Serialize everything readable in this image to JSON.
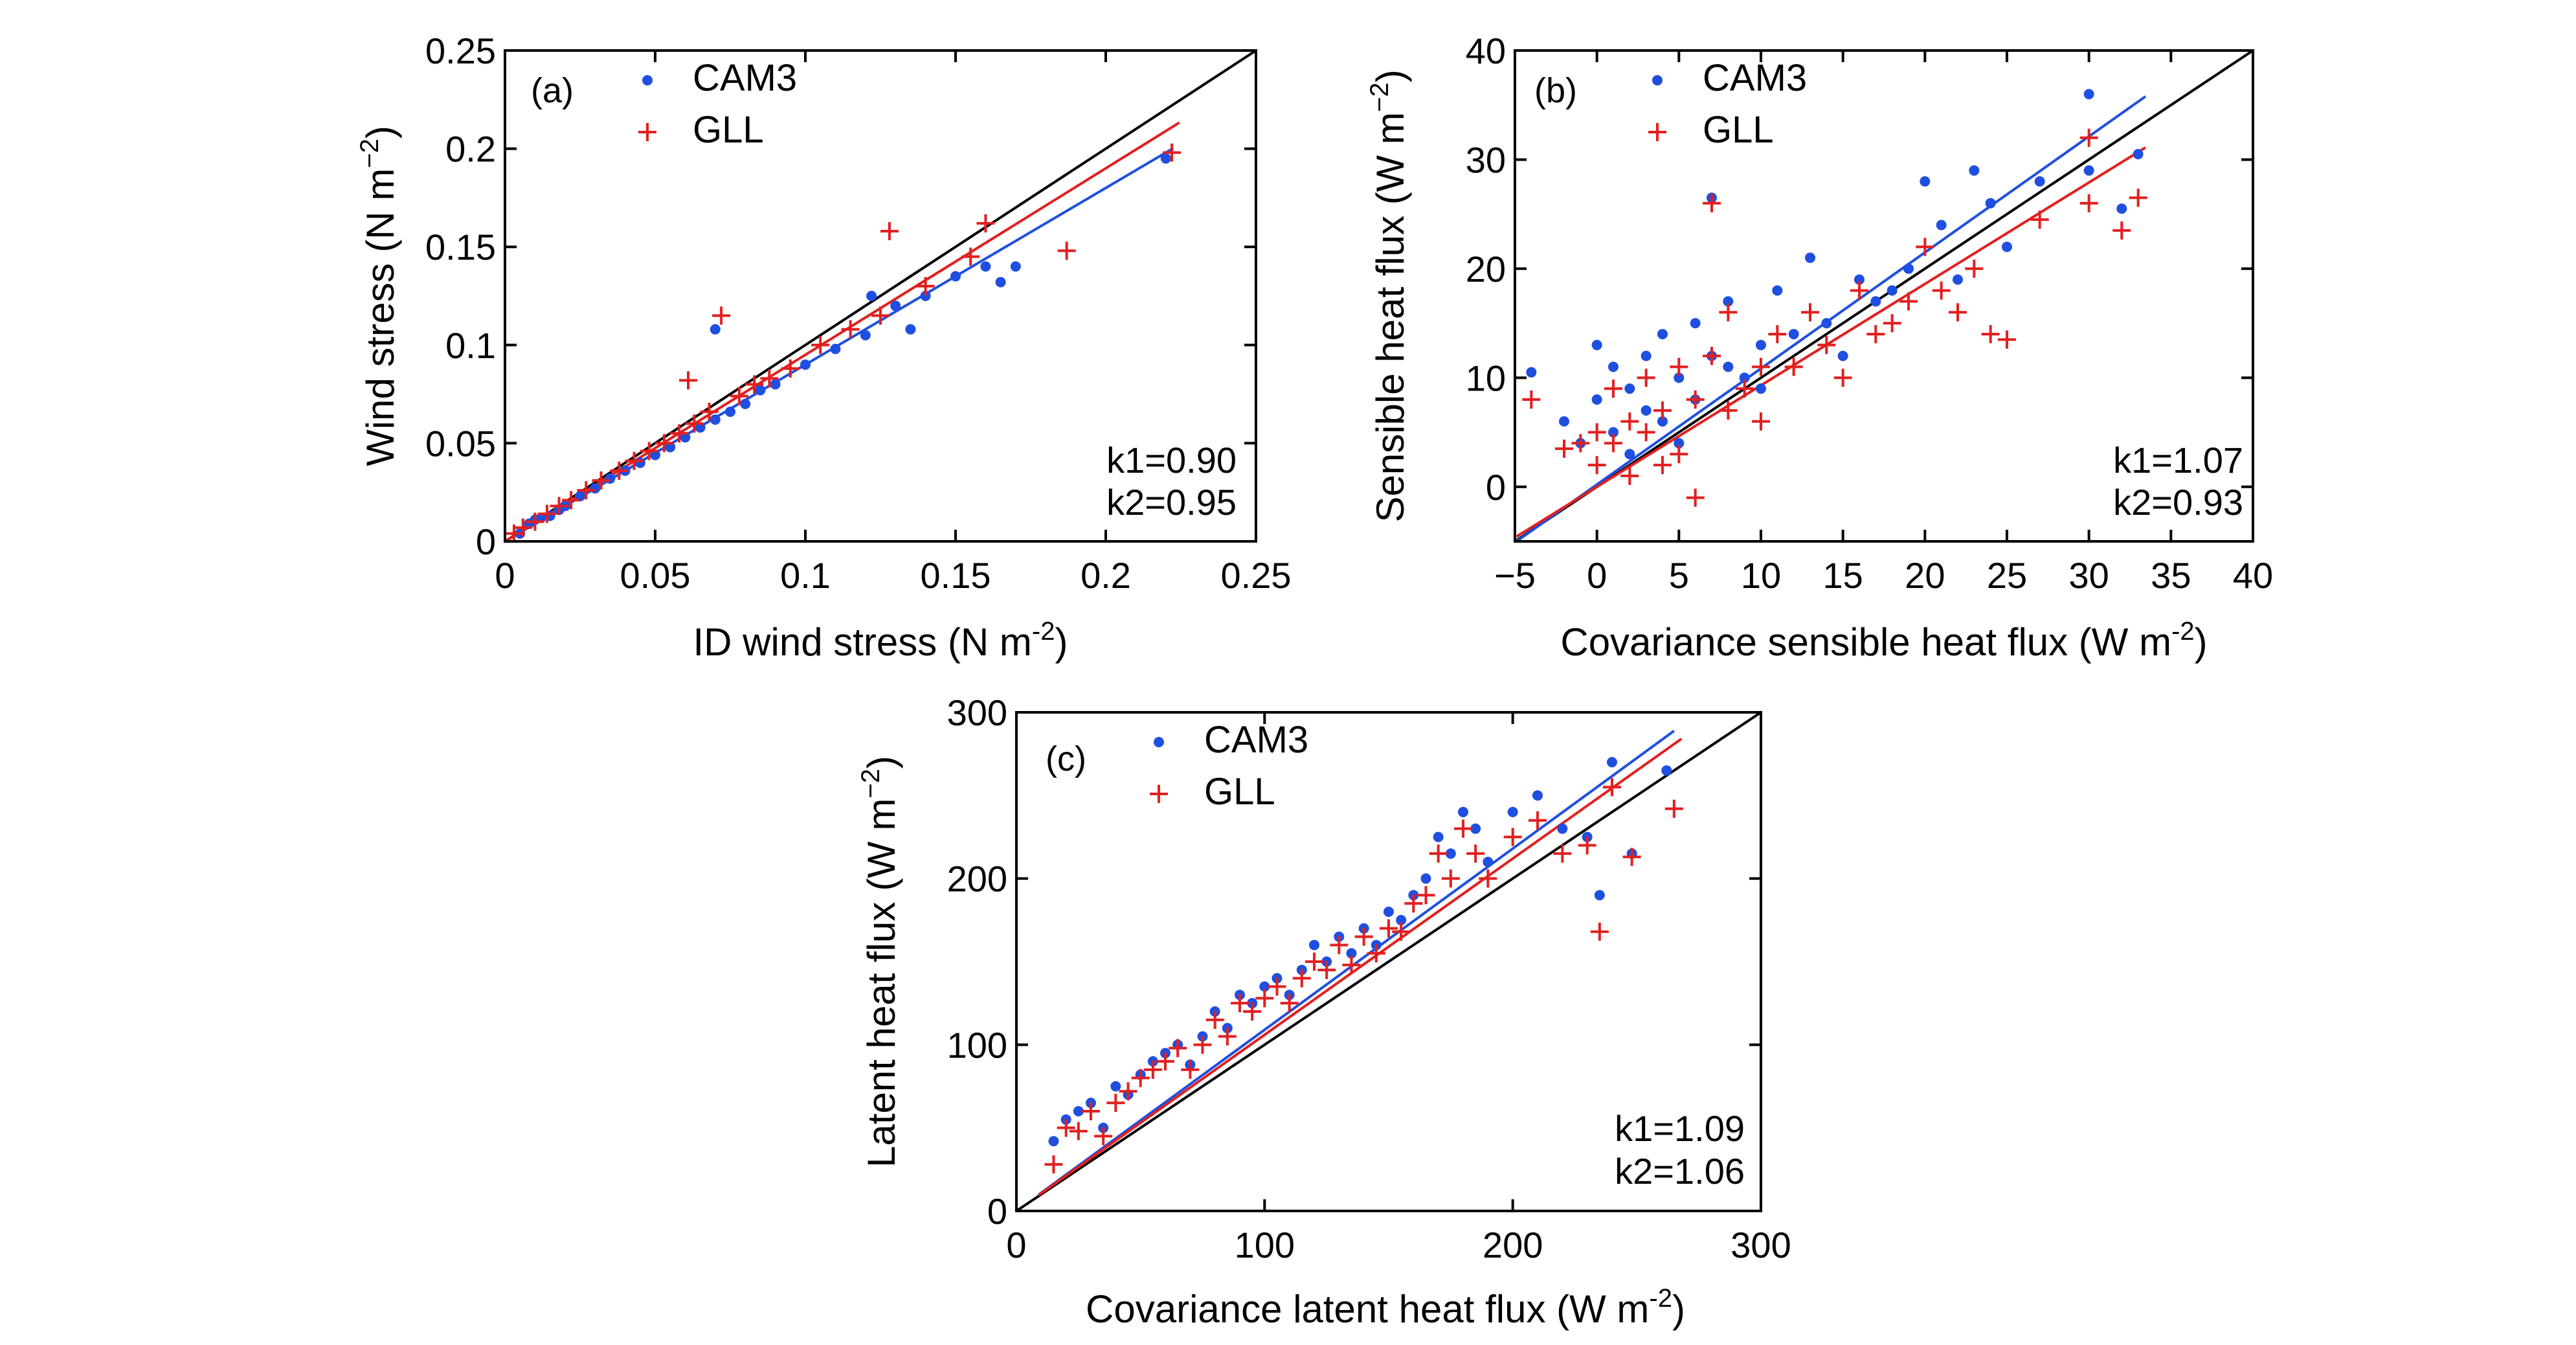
{
  "colors": {
    "cam3": "#1f4fe0",
    "gll": "#e21f1f",
    "one_to_one": "#000000"
  },
  "chart_data": [
    {
      "type": "scatter",
      "panel": "(a)",
      "xlabel": "ID wind stress (N m-2)",
      "ylabel": "Wind stress (N m-2)",
      "xlim": [
        0,
        0.25
      ],
      "ylim": [
        0,
        0.25
      ],
      "xticks": [
        "0",
        "0.05",
        "0.1",
        "0.15",
        "0.2",
        "0.25"
      ],
      "yticks": [
        "0",
        "0.05",
        "0.1",
        "0.15",
        "0.2",
        "0.25"
      ],
      "legend": [
        "CAM3",
        "GLL"
      ],
      "legend_position": "top-left",
      "k1": "k1=0.90",
      "k2": "k2=0.95",
      "series": [
        {
          "name": "CAM3",
          "marker": "dot",
          "fit_slope": 0.9,
          "points": [
            [
              0.005,
              0.004
            ],
            [
              0.008,
              0.009
            ],
            [
              0.01,
              0.011
            ],
            [
              0.012,
              0.012
            ],
            [
              0.015,
              0.013
            ],
            [
              0.018,
              0.016
            ],
            [
              0.02,
              0.018
            ],
            [
              0.025,
              0.023
            ],
            [
              0.03,
              0.027
            ],
            [
              0.035,
              0.032
            ],
            [
              0.04,
              0.036
            ],
            [
              0.045,
              0.04
            ],
            [
              0.05,
              0.044
            ],
            [
              0.055,
              0.048
            ],
            [
              0.06,
              0.053
            ],
            [
              0.065,
              0.058
            ],
            [
              0.07,
              0.062
            ],
            [
              0.075,
              0.066
            ],
            [
              0.08,
              0.07
            ],
            [
              0.085,
              0.077
            ],
            [
              0.09,
              0.08
            ],
            [
              0.1,
              0.09
            ],
            [
              0.11,
              0.098
            ],
            [
              0.12,
              0.105
            ],
            [
              0.13,
              0.12
            ],
            [
              0.14,
              0.125
            ],
            [
              0.15,
              0.135
            ],
            [
              0.16,
              0.14
            ],
            [
              0.17,
              0.14
            ],
            [
              0.22,
              0.195
            ],
            [
              0.07,
              0.108
            ],
            [
              0.122,
              0.125
            ],
            [
              0.135,
              0.108
            ],
            [
              0.165,
              0.132
            ]
          ]
        },
        {
          "name": "GLL",
          "marker": "plus",
          "fit_slope": 0.95,
          "points": [
            [
              0.003,
              0.004
            ],
            [
              0.006,
              0.007
            ],
            [
              0.01,
              0.01
            ],
            [
              0.014,
              0.014
            ],
            [
              0.018,
              0.018
            ],
            [
              0.022,
              0.021
            ],
            [
              0.027,
              0.026
            ],
            [
              0.032,
              0.031
            ],
            [
              0.038,
              0.036
            ],
            [
              0.043,
              0.041
            ],
            [
              0.048,
              0.046
            ],
            [
              0.053,
              0.05
            ],
            [
              0.058,
              0.055
            ],
            [
              0.063,
              0.06
            ],
            [
              0.068,
              0.066
            ],
            [
              0.072,
              0.115
            ],
            [
              0.078,
              0.074
            ],
            [
              0.083,
              0.08
            ],
            [
              0.088,
              0.083
            ],
            [
              0.095,
              0.088
            ],
            [
              0.105,
              0.1
            ],
            [
              0.115,
              0.108
            ],
            [
              0.125,
              0.115
            ],
            [
              0.128,
              0.158
            ],
            [
              0.14,
              0.13
            ],
            [
              0.155,
              0.145
            ],
            [
              0.16,
              0.162
            ],
            [
              0.187,
              0.148
            ],
            [
              0.222,
              0.198
            ],
            [
              0.061,
              0.082
            ]
          ]
        }
      ]
    },
    {
      "type": "scatter",
      "panel": "(b)",
      "xlabel": "Covariance sensible heat flux (W m-2)",
      "ylabel": "Sensible heat flux (W m-2)",
      "xlim": [
        -5,
        40
      ],
      "ylim": [
        -5,
        40
      ],
      "xticks": [
        "−5",
        "0",
        "5",
        "10",
        "15",
        "20",
        "25",
        "30",
        "35",
        "40"
      ],
      "yticks": [
        "0",
        "10",
        "20",
        "30",
        "40"
      ],
      "legend": [
        "CAM3",
        "GLL"
      ],
      "legend_position": "top-left",
      "k1": "k1=1.07",
      "k2": "k2=0.93",
      "series": [
        {
          "name": "CAM3",
          "marker": "dot",
          "fit_slope": 1.07,
          "points": [
            [
              -4,
              10.5
            ],
            [
              -2,
              6
            ],
            [
              -1,
              4
            ],
            [
              0,
              13
            ],
            [
              0,
              8
            ],
            [
              1,
              11
            ],
            [
              1,
              5
            ],
            [
              2,
              9
            ],
            [
              2,
              3
            ],
            [
              3,
              12
            ],
            [
              3,
              7
            ],
            [
              4,
              14
            ],
            [
              4,
              6
            ],
            [
              5,
              10
            ],
            [
              5,
              4
            ],
            [
              6,
              15
            ],
            [
              6,
              8
            ],
            [
              7,
              26.5
            ],
            [
              7,
              12
            ],
            [
              8,
              11
            ],
            [
              8,
              17
            ],
            [
              9,
              10
            ],
            [
              10,
              13
            ],
            [
              10,
              9
            ],
            [
              11,
              18
            ],
            [
              12,
              14
            ],
            [
              13,
              21
            ],
            [
              14,
              15
            ],
            [
              15,
              12
            ],
            [
              16,
              19
            ],
            [
              17,
              17
            ],
            [
              18,
              18
            ],
            [
              19,
              20
            ],
            [
              20,
              28
            ],
            [
              21,
              24
            ],
            [
              22,
              19
            ],
            [
              23,
              29
            ],
            [
              24,
              26
            ],
            [
              25,
              22
            ],
            [
              27,
              28
            ],
            [
              30,
              36
            ],
            [
              30,
              29
            ],
            [
              32,
              25.5
            ],
            [
              33,
              30.5
            ]
          ]
        },
        {
          "name": "GLL",
          "marker": "plus",
          "fit_slope": 0.93,
          "points": [
            [
              -4,
              8
            ],
            [
              -2,
              3.5
            ],
            [
              -1,
              4
            ],
            [
              0,
              5
            ],
            [
              0,
              2
            ],
            [
              1,
              9
            ],
            [
              1,
              4
            ],
            [
              2,
              6
            ],
            [
              2,
              1
            ],
            [
              3,
              10
            ],
            [
              3,
              5
            ],
            [
              4,
              7
            ],
            [
              4,
              2
            ],
            [
              5,
              11
            ],
            [
              5,
              3
            ],
            [
              6,
              -1
            ],
            [
              6,
              8
            ],
            [
              7,
              26
            ],
            [
              7,
              12
            ],
            [
              8,
              7
            ],
            [
              8,
              16
            ],
            [
              9,
              9
            ],
            [
              10,
              11
            ],
            [
              10,
              6
            ],
            [
              11,
              14
            ],
            [
              12,
              11
            ],
            [
              13,
              16
            ],
            [
              14,
              13
            ],
            [
              15,
              10
            ],
            [
              16,
              18
            ],
            [
              17,
              14
            ],
            [
              18,
              15
            ],
            [
              19,
              17
            ],
            [
              20,
              22
            ],
            [
              21,
              18
            ],
            [
              22,
              16
            ],
            [
              23,
              20
            ],
            [
              24,
              14
            ],
            [
              25,
              13.5
            ],
            [
              27,
              24.5
            ],
            [
              30,
              26
            ],
            [
              30,
              32
            ],
            [
              32,
              23.5
            ],
            [
              33,
              26.5
            ]
          ]
        }
      ]
    },
    {
      "type": "scatter",
      "panel": "(c)",
      "xlabel": "Covariance latent heat flux (W m-2)",
      "ylabel": "Latent heat flux (W m-2)",
      "xlim": [
        0,
        300
      ],
      "ylim": [
        0,
        300
      ],
      "xticks": [
        "0",
        "100",
        "200",
        "300"
      ],
      "yticks": [
        "0",
        "100",
        "200",
        "300"
      ],
      "legend": [
        "CAM3",
        "GLL"
      ],
      "legend_position": "top-left",
      "k1": "k1=1.09",
      "k2": "k2=1.06",
      "series": [
        {
          "name": "CAM3",
          "marker": "dot",
          "fit_slope": 1.09,
          "points": [
            [
              15,
              42
            ],
            [
              20,
              55
            ],
            [
              25,
              60
            ],
            [
              30,
              65
            ],
            [
              35,
              50
            ],
            [
              40,
              75
            ],
            [
              45,
              70
            ],
            [
              50,
              82
            ],
            [
              55,
              90
            ],
            [
              60,
              95
            ],
            [
              65,
              100
            ],
            [
              70,
              88
            ],
            [
              75,
              105
            ],
            [
              80,
              120
            ],
            [
              85,
              110
            ],
            [
              90,
              130
            ],
            [
              95,
              125
            ],
            [
              100,
              135
            ],
            [
              105,
              140
            ],
            [
              110,
              130
            ],
            [
              115,
              145
            ],
            [
              120,
              160
            ],
            [
              125,
              150
            ],
            [
              130,
              165
            ],
            [
              135,
              155
            ],
            [
              140,
              170
            ],
            [
              145,
              160
            ],
            [
              150,
              180
            ],
            [
              155,
              175
            ],
            [
              160,
              190
            ],
            [
              165,
              200
            ],
            [
              170,
              225
            ],
            [
              175,
              215
            ],
            [
              180,
              240
            ],
            [
              185,
              230
            ],
            [
              190,
              210
            ],
            [
              200,
              240
            ],
            [
              210,
              250
            ],
            [
              220,
              230
            ],
            [
              230,
              225
            ],
            [
              235,
              190
            ],
            [
              240,
              270
            ],
            [
              248,
              215
            ],
            [
              262,
              265
            ]
          ]
        },
        {
          "name": "GLL",
          "marker": "plus",
          "fit_slope": 1.06,
          "points": [
            [
              15,
              28
            ],
            [
              20,
              50
            ],
            [
              25,
              48
            ],
            [
              30,
              60
            ],
            [
              35,
              45
            ],
            [
              40,
              65
            ],
            [
              45,
              72
            ],
            [
              50,
              80
            ],
            [
              55,
              85
            ],
            [
              60,
              90
            ],
            [
              65,
              98
            ],
            [
              70,
              85
            ],
            [
              75,
              100
            ],
            [
              80,
              115
            ],
            [
              85,
              105
            ],
            [
              90,
              125
            ],
            [
              95,
              120
            ],
            [
              100,
              128
            ],
            [
              105,
              135
            ],
            [
              110,
              125
            ],
            [
              115,
              140
            ],
            [
              120,
              150
            ],
            [
              125,
              145
            ],
            [
              130,
              160
            ],
            [
              135,
              148
            ],
            [
              140,
              165
            ],
            [
              145,
              155
            ],
            [
              150,
              170
            ],
            [
              155,
              168
            ],
            [
              160,
              185
            ],
            [
              165,
              190
            ],
            [
              170,
              215
            ],
            [
              175,
              200
            ],
            [
              180,
              230
            ],
            [
              185,
              215
            ],
            [
              190,
              200
            ],
            [
              200,
              225
            ],
            [
              210,
              235
            ],
            [
              220,
              215
            ],
            [
              230,
              220
            ],
            [
              235,
              168
            ],
            [
              240,
              255
            ],
            [
              248,
              213
            ],
            [
              265,
              242
            ]
          ]
        }
      ]
    }
  ]
}
